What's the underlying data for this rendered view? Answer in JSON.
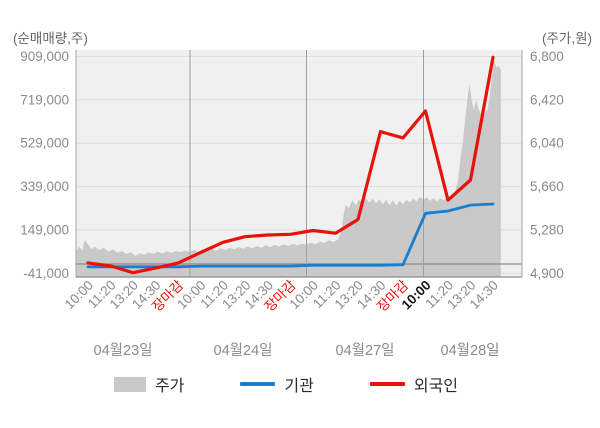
{
  "chart_data": {
    "type": "line",
    "title": "",
    "description": "Intraday net trading volume of institutions and foreigners vs stock price over four trading days",
    "left_axis": {
      "title": "(순매매량,주)",
      "min": -41000,
      "max": 909000,
      "ticks": [
        {
          "value": 909000,
          "label": "909,000"
        },
        {
          "value": 719000,
          "label": "719,000"
        },
        {
          "value": 529000,
          "label": "529,000"
        },
        {
          "value": 339000,
          "label": "339,000"
        },
        {
          "value": 149000,
          "label": "149,000"
        },
        {
          "value": -41000,
          "label": "-41,000"
        }
      ]
    },
    "right_axis": {
      "title": "(주가,원)",
      "min": 4900,
      "max": 6800,
      "ticks": [
        {
          "value": 6800,
          "label": "6,800"
        },
        {
          "value": 6420,
          "label": "6,420"
        },
        {
          "value": 6040,
          "label": "6,040"
        },
        {
          "value": 5660,
          "label": "5,660"
        },
        {
          "value": 5280,
          "label": "5,280"
        },
        {
          "value": 4900,
          "label": "4,900"
        }
      ]
    },
    "x_axis": {
      "slot_labels": [
        {
          "label": "10:00",
          "style": "normal"
        },
        {
          "label": "11:20",
          "style": "normal"
        },
        {
          "label": "13:20",
          "style": "normal"
        },
        {
          "label": "14:30",
          "style": "normal"
        },
        {
          "label": "장마감",
          "style": "close"
        },
        {
          "label": "10:00",
          "style": "normal"
        },
        {
          "label": "11:20",
          "style": "normal"
        },
        {
          "label": "13:20",
          "style": "normal"
        },
        {
          "label": "14:30",
          "style": "normal"
        },
        {
          "label": "장마감",
          "style": "close"
        },
        {
          "label": "10:00",
          "style": "normal"
        },
        {
          "label": "11:20",
          "style": "normal"
        },
        {
          "label": "13:20",
          "style": "normal"
        },
        {
          "label": "14:30",
          "style": "normal"
        },
        {
          "label": "장마감",
          "style": "close"
        },
        {
          "label": "10:00",
          "style": "current"
        },
        {
          "label": "11:20",
          "style": "normal"
        },
        {
          "label": "13:20",
          "style": "normal"
        },
        {
          "label": "14:30",
          "style": "normal"
        }
      ],
      "date_labels": [
        "04월23일",
        "04월24일",
        "04월27일",
        "04월28일"
      ],
      "day_boundaries_after_slots": [
        4,
        9,
        14
      ]
    },
    "series": [
      {
        "name": "주가",
        "type": "area",
        "axis": "right",
        "color": "#c9c9c9",
        "points": [
          [
            -0.53,
            5095
          ],
          [
            -0.4,
            5135
          ],
          [
            -0.25,
            5100
          ],
          [
            -0.15,
            5190
          ],
          [
            0,
            5155
          ],
          [
            0.15,
            5110
          ],
          [
            0.3,
            5135
          ],
          [
            0.5,
            5105
          ],
          [
            0.7,
            5125
          ],
          [
            0.9,
            5090
          ],
          [
            1.1,
            5110
          ],
          [
            1.3,
            5080
          ],
          [
            1.5,
            5095
          ],
          [
            1.7,
            5070
          ],
          [
            1.9,
            5085
          ],
          [
            2.1,
            5055
          ],
          [
            2.3,
            5075
          ],
          [
            2.5,
            5065
          ],
          [
            2.7,
            5085
          ],
          [
            2.9,
            5070
          ],
          [
            3.1,
            5090
          ],
          [
            3.3,
            5075
          ],
          [
            3.5,
            5095
          ],
          [
            3.7,
            5080
          ],
          [
            3.9,
            5095
          ],
          [
            4.1,
            5085
          ],
          [
            4.3,
            5100
          ],
          [
            4.5,
            5090
          ],
          [
            4.7,
            5105
          ],
          [
            4.9,
            5090
          ],
          [
            5.1,
            5110
          ],
          [
            5.3,
            5095
          ],
          [
            5.5,
            5115
          ],
          [
            5.7,
            5100
          ],
          [
            5.9,
            5120
          ],
          [
            6.1,
            5105
          ],
          [
            6.3,
            5125
          ],
          [
            6.5,
            5110
          ],
          [
            6.7,
            5130
          ],
          [
            6.9,
            5115
          ],
          [
            7.1,
            5135
          ],
          [
            7.3,
            5120
          ],
          [
            7.5,
            5140
          ],
          [
            7.7,
            5125
          ],
          [
            7.9,
            5145
          ],
          [
            8.1,
            5130
          ],
          [
            8.3,
            5150
          ],
          [
            8.5,
            5135
          ],
          [
            8.7,
            5155
          ],
          [
            8.9,
            5140
          ],
          [
            9.1,
            5160
          ],
          [
            9.3,
            5145
          ],
          [
            9.5,
            5160
          ],
          [
            9.7,
            5150
          ],
          [
            9.9,
            5170
          ],
          [
            10.1,
            5155
          ],
          [
            10.3,
            5180
          ],
          [
            10.5,
            5165
          ],
          [
            10.7,
            5190
          ],
          [
            10.9,
            5175
          ],
          [
            11.1,
            5195
          ],
          [
            11.25,
            5260
          ],
          [
            11.35,
            5400
          ],
          [
            11.45,
            5500
          ],
          [
            11.6,
            5470
          ],
          [
            11.75,
            5540
          ],
          [
            11.9,
            5495
          ],
          [
            12.05,
            5550
          ],
          [
            12.2,
            5510
          ],
          [
            12.35,
            5560
          ],
          [
            12.5,
            5520
          ],
          [
            12.65,
            5555
          ],
          [
            12.8,
            5515
          ],
          [
            12.95,
            5550
          ],
          [
            13.1,
            5505
          ],
          [
            13.25,
            5545
          ],
          [
            13.4,
            5500
          ],
          [
            13.55,
            5540
          ],
          [
            13.7,
            5495
          ],
          [
            13.85,
            5535
          ],
          [
            14,
            5505
          ],
          [
            14.15,
            5545
          ],
          [
            14.3,
            5520
          ],
          [
            14.45,
            5555
          ],
          [
            14.6,
            5530
          ],
          [
            14.75,
            5570
          ],
          [
            14.9,
            5545
          ],
          [
            15.05,
            5565
          ],
          [
            15.2,
            5535
          ],
          [
            15.35,
            5560
          ],
          [
            15.5,
            5530
          ],
          [
            15.65,
            5555
          ],
          [
            15.8,
            5540
          ],
          [
            15.95,
            5560
          ],
          [
            16.1,
            5545
          ],
          [
            16.25,
            5570
          ],
          [
            16.35,
            5640
          ],
          [
            16.45,
            5720
          ],
          [
            16.55,
            5900
          ],
          [
            16.65,
            6030
          ],
          [
            16.75,
            6230
          ],
          [
            16.85,
            6400
          ],
          [
            16.95,
            6560
          ],
          [
            17.05,
            6420
          ],
          [
            17.15,
            6330
          ],
          [
            17.25,
            6420
          ],
          [
            17.35,
            6340
          ],
          [
            17.45,
            6300
          ],
          [
            17.55,
            6320
          ],
          [
            17.65,
            6310
          ],
          [
            17.75,
            6330
          ],
          [
            17.85,
            6440
          ],
          [
            17.95,
            6620
          ],
          [
            18.05,
            6765
          ],
          [
            18.15,
            6700
          ],
          [
            18.25,
            6720
          ],
          [
            18.35,
            6680
          ]
        ]
      },
      {
        "name": "기관",
        "type": "line",
        "axis": "left",
        "color": "#1a7dcd",
        "values": [
          -12000,
          -12000,
          -12000,
          -12000,
          -12000,
          -9000,
          -9000,
          -9000,
          -9000,
          -9000,
          -5000,
          -5000,
          -5000,
          -5000,
          -3000,
          222000,
          232000,
          258000,
          263000
        ]
      },
      {
        "name": "외국인",
        "type": "line",
        "axis": "left",
        "color": "#e8120a",
        "values": [
          5000,
          -8000,
          -38000,
          -18000,
          4000,
          50000,
          95000,
          120000,
          127000,
          130000,
          147000,
          135000,
          195000,
          580000,
          552000,
          670000,
          280000,
          368000,
          905000
        ]
      }
    ],
    "grid": {
      "horizontal": true,
      "vertical_day_separators": true,
      "zero_line": true
    }
  },
  "legend": {
    "items": [
      {
        "label": "주가",
        "swatch": "area",
        "color": "#c9c9c9"
      },
      {
        "label": "기관",
        "swatch": "line",
        "color": "#1a7dcd"
      },
      {
        "label": "외국인",
        "swatch": "line",
        "color": "#e8120a"
      }
    ]
  },
  "colors": {
    "plot_background": "#f0f0f0",
    "gridline": "#dedede",
    "zero_line": "#8c8c8c",
    "day_separator": "#9e9e9e",
    "spine": "#a6a6a6",
    "tick_label": "#8a8a8a",
    "close_label": "#e8120a",
    "current_label": "#1a1a1a"
  }
}
